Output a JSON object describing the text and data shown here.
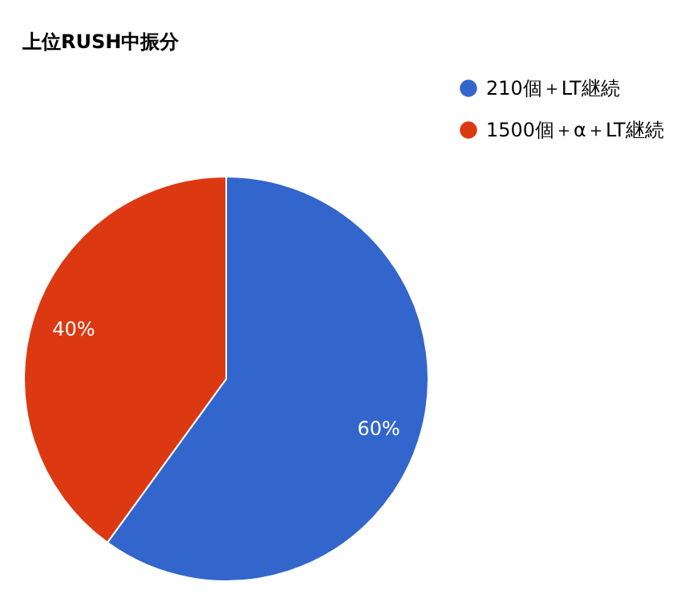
{
  "chart_data": {
    "type": "pie",
    "title": "上位RUSH中振分",
    "categories": [
      "210個＋LT継続",
      "1500個＋α＋LT継続"
    ],
    "values": [
      60,
      40
    ],
    "colors": [
      "#3366cc",
      "#dc3912"
    ],
    "value_labels": [
      "60%",
      "40%"
    ],
    "legend": "top right"
  }
}
